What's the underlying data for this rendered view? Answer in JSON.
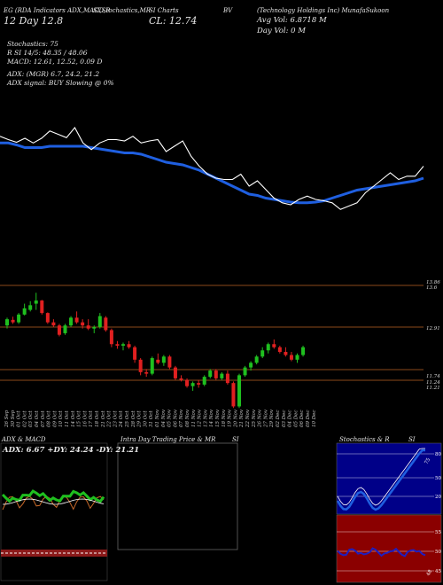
{
  "header": {
    "row1_left": "EG (RDA Indicators ADX,MACD,R",
    "row1_mid": "SI,Stochastics,MR",
    "row1_mid2": "SI Charts",
    "row1_right_code": "BV",
    "row1_right": "(Technology Holdings Inc) MunafaSukoon",
    "row2_left": "12  Day    ",
    "row2_left2": "12.8",
    "row2_close": "CL: 12.74",
    "row2_avgvol": "Avg Vol: 6.8718 M",
    "row3_dayvol": "Day Vol: 0   M",
    "stoch_line": "Stochastics: 75",
    "rsi_line": "R          SI 14/5: 48.35 / 48.06",
    "macd_line": "MACD: 12.61, 12.52, 0.09 D",
    "adx_line": "ADX:                                  (MGR) 6.7, 24.2, 21.2",
    "adx_signal": "ADX  signal:                          BUY Slowing @ 0%"
  },
  "price_levels": [
    "13.86",
    "13.6",
    "12.91",
    "11.74",
    "11.24",
    "11.21"
  ],
  "x_dates": [
    "26 Sep",
    "30 Sep",
    "01 Oct",
    "02 Oct",
    "03 Oct",
    "04 Oct",
    "07 Oct",
    "08 Oct",
    "09 Oct",
    "10 Oct",
    "11 Oct",
    "14 Oct",
    "15 Oct",
    "16 Oct",
    "17 Oct",
    "18 Oct",
    "21 Oct",
    "22 Oct",
    "23 Oct",
    "24 Oct",
    "25 Oct",
    "28 Oct",
    "29 Oct",
    "30 Oct",
    "31 Oct",
    "01 Nov",
    "04 Nov",
    "05 Nov",
    "06 Nov",
    "07 Nov",
    "08 Nov",
    "11 Nov",
    "12 Nov",
    "13 Nov",
    "14 Nov",
    "15 Nov",
    "18 Nov",
    "19 Nov",
    "20 Nov",
    "21 Nov",
    "22 Nov",
    "25 Nov",
    "26 Nov",
    "27 Nov",
    "29 Nov",
    "02 Dec",
    "03 Dec",
    "04 Dec",
    "05 Dec",
    "06 Dec",
    "09 Dec",
    "10 Dec"
  ],
  "panels": {
    "adx_title": "ADX  & MACD",
    "adx_values": "ADX: 6.67  +DY: 24.24  -DY: 21.21",
    "intraday_title": "Intra  Day Trading Price  & MR",
    "intraday_title2": "SI",
    "stoch_title": "Stochastics & R",
    "stoch_title2": "SI",
    "stoch_levels": [
      "80",
      "50",
      "20"
    ],
    "stoch_value": "75",
    "rsi_levels": [
      "55",
      "50",
      "45"
    ],
    "rsi_value": "48"
  },
  "colors": {
    "up": "#1fbf1f",
    "down": "#e02020",
    "ma": "#1f5fe0",
    "price": "#ffffff",
    "level": "#8b4a1a"
  },
  "chart_data": [
    {
      "type": "line",
      "title": "",
      "series": [],
      "x": [
        0,
        1,
        2,
        3,
        4,
        5,
        6,
        7,
        8,
        9,
        10,
        11,
        12,
        13,
        14,
        15,
        16,
        17,
        18,
        19,
        20,
        21,
        22,
        23,
        24,
        25,
        26,
        27,
        28,
        29,
        30,
        31,
        32,
        33,
        34,
        35,
        36,
        37,
        38,
        39,
        40,
        41,
        42,
        43,
        44,
        45,
        46,
        47,
        48,
        49,
        50,
        51
      ],
      "price": [
        12.95,
        12.9,
        12.86,
        12.92,
        12.85,
        12.92,
        13.03,
        12.98,
        12.93,
        13.08,
        12.85,
        12.75,
        12.85,
        12.9,
        12.9,
        12.88,
        12.95,
        12.85,
        12.88,
        12.9,
        12.72,
        12.8,
        12.88,
        12.65,
        12.5,
        12.38,
        12.32,
        12.3,
        12.3,
        12.38,
        12.2,
        12.28,
        12.15,
        12.02,
        11.95,
        11.92,
        12.0,
        12.05,
        12.0,
        11.98,
        11.95,
        11.85,
        11.9,
        11.95,
        12.1,
        12.2,
        12.3,
        12.4,
        12.3,
        12.35,
        12.35,
        12.5
      ],
      "ma": [
        12.85,
        12.85,
        12.82,
        12.78,
        12.78,
        12.78,
        12.8,
        12.8,
        12.8,
        12.8,
        12.8,
        12.78,
        12.76,
        12.74,
        12.72,
        12.7,
        12.7,
        12.68,
        12.64,
        12.6,
        12.56,
        12.54,
        12.52,
        12.48,
        12.44,
        12.38,
        12.32,
        12.26,
        12.2,
        12.14,
        12.08,
        12.06,
        12.02,
        12.0,
        11.98,
        11.96,
        11.95,
        11.95,
        11.96,
        11.98,
        12.02,
        12.06,
        12.1,
        12.14,
        12.16,
        12.18,
        12.2,
        12.22,
        12.24,
        12.26,
        12.28,
        12.32
      ]
    },
    {
      "type": "bar",
      "title": "",
      "candles": [
        {
          "o": 12.5,
          "h": 12.75,
          "l": 12.4,
          "c": 12.7
        },
        {
          "o": 12.68,
          "h": 12.78,
          "l": 12.55,
          "c": 12.6
        },
        {
          "o": 12.6,
          "h": 12.9,
          "l": 12.55,
          "c": 12.85
        },
        {
          "o": 12.85,
          "h": 13.2,
          "l": 12.82,
          "c": 13.05
        },
        {
          "o": 13.0,
          "h": 13.28,
          "l": 12.95,
          "c": 13.15
        },
        {
          "o": 13.2,
          "h": 13.55,
          "l": 13.0,
          "c": 13.3
        },
        {
          "o": 13.3,
          "h": 13.32,
          "l": 12.85,
          "c": 12.9
        },
        {
          "o": 12.9,
          "h": 12.92,
          "l": 12.55,
          "c": 12.6
        },
        {
          "o": 12.6,
          "h": 12.7,
          "l": 12.45,
          "c": 12.5
        },
        {
          "o": 12.5,
          "h": 12.55,
          "l": 12.15,
          "c": 12.2
        },
        {
          "o": 12.25,
          "h": 12.55,
          "l": 12.2,
          "c": 12.5
        },
        {
          "o": 12.5,
          "h": 12.8,
          "l": 12.45,
          "c": 12.75
        },
        {
          "o": 12.75,
          "h": 12.95,
          "l": 12.55,
          "c": 12.6
        },
        {
          "o": 12.6,
          "h": 12.7,
          "l": 12.4,
          "c": 12.5
        },
        {
          "o": 12.5,
          "h": 12.7,
          "l": 12.35,
          "c": 12.4
        },
        {
          "o": 12.4,
          "h": 12.5,
          "l": 12.25,
          "c": 12.45
        },
        {
          "o": 12.45,
          "h": 12.9,
          "l": 12.4,
          "c": 12.8
        },
        {
          "o": 12.75,
          "h": 12.8,
          "l": 12.3,
          "c": 12.35
        },
        {
          "o": 12.35,
          "h": 12.4,
          "l": 11.8,
          "c": 11.9
        },
        {
          "o": 11.9,
          "h": 12.0,
          "l": 11.75,
          "c": 11.85
        },
        {
          "o": 11.85,
          "h": 11.95,
          "l": 11.7,
          "c": 11.9
        },
        {
          "o": 11.9,
          "h": 12.0,
          "l": 11.75,
          "c": 11.8
        },
        {
          "o": 11.8,
          "h": 11.85,
          "l": 11.3,
          "c": 11.4
        },
        {
          "o": 11.4,
          "h": 11.45,
          "l": 10.9,
          "c": 11.0
        },
        {
          "o": 11.0,
          "h": 11.1,
          "l": 10.85,
          "c": 10.95
        },
        {
          "o": 10.95,
          "h": 11.5,
          "l": 10.9,
          "c": 11.45
        },
        {
          "o": 11.4,
          "h": 11.6,
          "l": 11.25,
          "c": 11.3
        },
        {
          "o": 11.3,
          "h": 11.55,
          "l": 11.2,
          "c": 11.5
        },
        {
          "o": 11.5,
          "h": 11.55,
          "l": 11.1,
          "c": 11.15
        },
        {
          "o": 11.15,
          "h": 11.2,
          "l": 10.75,
          "c": 10.8
        },
        {
          "o": 10.8,
          "h": 10.9,
          "l": 10.7,
          "c": 10.75
        },
        {
          "o": 10.75,
          "h": 10.8,
          "l": 10.5,
          "c": 10.55
        },
        {
          "o": 10.55,
          "h": 10.7,
          "l": 10.4,
          "c": 10.65
        },
        {
          "o": 10.65,
          "h": 10.75,
          "l": 10.5,
          "c": 10.6
        },
        {
          "o": 10.6,
          "h": 10.9,
          "l": 10.55,
          "c": 10.85
        },
        {
          "o": 10.85,
          "h": 11.1,
          "l": 10.8,
          "c": 11.05
        },
        {
          "o": 11.05,
          "h": 11.1,
          "l": 10.75,
          "c": 10.8
        },
        {
          "o": 10.8,
          "h": 11.0,
          "l": 10.75,
          "c": 10.95
        },
        {
          "o": 10.95,
          "h": 11.05,
          "l": 10.6,
          "c": 10.65
        },
        {
          "o": 10.65,
          "h": 10.7,
          "l": 9.85,
          "c": 9.9
        },
        {
          "o": 9.9,
          "h": 10.95,
          "l": 9.85,
          "c": 10.9
        },
        {
          "o": 10.9,
          "h": 11.2,
          "l": 10.85,
          "c": 11.15
        },
        {
          "o": 11.15,
          "h": 11.35,
          "l": 11.05,
          "c": 11.3
        },
        {
          "o": 11.3,
          "h": 11.55,
          "l": 11.25,
          "c": 11.5
        },
        {
          "o": 11.5,
          "h": 11.8,
          "l": 11.45,
          "c": 11.7
        },
        {
          "o": 11.7,
          "h": 11.95,
          "l": 11.6,
          "c": 11.9
        },
        {
          "o": 11.9,
          "h": 12.05,
          "l": 11.75,
          "c": 11.8
        },
        {
          "o": 11.8,
          "h": 11.85,
          "l": 11.6,
          "c": 11.65
        },
        {
          "o": 11.65,
          "h": 11.8,
          "l": 11.5,
          "c": 11.55
        },
        {
          "o": 11.55,
          "h": 11.65,
          "l": 11.35,
          "c": 11.4
        },
        {
          "o": 11.4,
          "h": 11.6,
          "l": 11.3,
          "c": 11.55
        },
        {
          "o": 11.55,
          "h": 11.85,
          "l": 11.5,
          "c": 11.8
        }
      ]
    }
  ]
}
